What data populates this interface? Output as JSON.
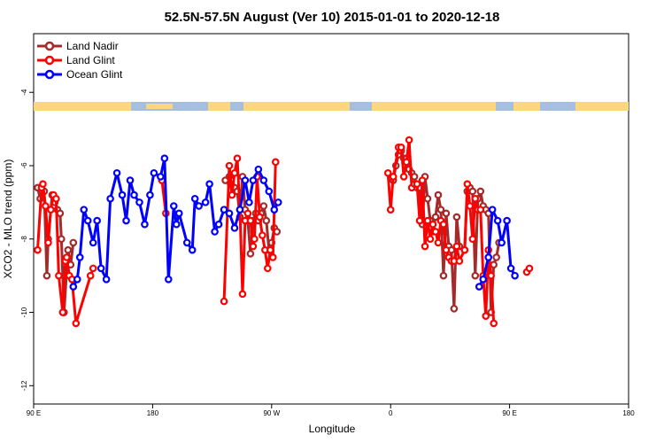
{
  "chart_data": {
    "type": "line",
    "title": "52.5N-57.5N August (Ver 10)   2015-01-01 to 2020-12-18",
    "xlabel": "Longitude",
    "ylabel": "XCO2 - MLO trend (ppm)",
    "x_ticks": [
      {
        "value": 90,
        "label": "90 E"
      },
      {
        "value": 180,
        "label": "180"
      },
      {
        "value": 270,
        "label": "90 W"
      },
      {
        "value": 360,
        "label": "0"
      },
      {
        "value": 450,
        "label": "90 E"
      },
      {
        "value": 540,
        "label": "180"
      }
    ],
    "y_ticks": [
      {
        "value": -4,
        "label": "-4"
      },
      {
        "value": -6,
        "label": "-6"
      },
      {
        "value": -8,
        "label": "-8"
      },
      {
        "value": -10,
        "label": "-10"
      },
      {
        "value": -12,
        "label": "-12"
      }
    ],
    "xlim": [
      90,
      540
    ],
    "ylim": [
      -12.5,
      -2.4
    ],
    "legend_position": "top-left",
    "series": [
      {
        "name": "Land Nadir",
        "color": "#a52a2a",
        "points": [
          [
            93,
            -6.6
          ],
          [
            95,
            -6.9
          ],
          [
            98,
            -6.7
          ],
          [
            100,
            -9
          ],
          [
            101,
            -8
          ],
          [
            104,
            -6.8
          ],
          [
            106,
            -7
          ],
          [
            108,
            -7.2
          ],
          [
            110,
            -7.3
          ],
          [
            111,
            -8
          ],
          [
            113,
            -10
          ],
          [
            116,
            -8.3
          ],
          [
            118,
            -8.7
          ],
          [
            120,
            -8.1
          ],
          [
            235,
            -6.4
          ],
          [
            238,
            -6.3
          ],
          [
            239,
            -6.5
          ],
          [
            242,
            -6.6
          ],
          [
            244,
            -6.7
          ],
          [
            246,
            -7.4
          ],
          [
            248,
            -6.3
          ],
          [
            250,
            -7.2
          ],
          [
            252,
            -7.5
          ],
          [
            254,
            -8.4
          ],
          [
            256,
            -7.5
          ],
          [
            258,
            -7.3
          ],
          [
            260,
            -7.5
          ],
          [
            262,
            -7.3
          ],
          [
            264,
            -7.1
          ],
          [
            266,
            -7.5
          ],
          [
            268,
            -8.3
          ],
          [
            270,
            -8.1
          ],
          [
            272,
            -7.7
          ],
          [
            274,
            -7.8
          ],
          [
            362,
            -6.4
          ],
          [
            364,
            -6
          ],
          [
            366,
            -5.7
          ],
          [
            368,
            -5.6
          ],
          [
            370,
            -5.8
          ],
          [
            372,
            -5.8
          ],
          [
            374,
            -6.1
          ],
          [
            376,
            -6.2
          ],
          [
            378,
            -6.3
          ],
          [
            380,
            -6.6
          ],
          [
            382,
            -6.6
          ],
          [
            384,
            -7.6
          ],
          [
            386,
            -6.3
          ],
          [
            388,
            -6.9
          ],
          [
            390,
            -7.5
          ],
          [
            392,
            -7.8
          ],
          [
            394,
            -7.4
          ],
          [
            396,
            -6.8
          ],
          [
            398,
            -7.2
          ],
          [
            400,
            -9
          ],
          [
            402,
            -7.3
          ],
          [
            404,
            -8.2
          ],
          [
            406,
            -8.3
          ],
          [
            408,
            -9.9
          ],
          [
            410,
            -7.4
          ],
          [
            412,
            -8.2
          ],
          [
            416,
            -8.3
          ],
          [
            418,
            -6.7
          ],
          [
            420,
            -6.6
          ],
          [
            422,
            -6.7
          ],
          [
            424,
            -9
          ],
          [
            426,
            -6.9
          ],
          [
            428,
            -6.7
          ],
          [
            430,
            -7.1
          ],
          [
            432,
            -7.2
          ],
          [
            434,
            -7.3
          ],
          [
            436,
            -10
          ],
          [
            438,
            -8.7
          ],
          [
            440,
            -8.5
          ],
          [
            442,
            -8.1
          ]
        ]
      },
      {
        "name": "Land Glint",
        "color": "#ff0000",
        "points": [
          [
            93,
            -8.3
          ],
          [
            96,
            -6.6
          ],
          [
            97,
            -6.5
          ],
          [
            99,
            -7.1
          ],
          [
            101,
            -8.1
          ],
          [
            103,
            -7.2
          ],
          [
            105,
            -6.8
          ],
          [
            107,
            -6.9
          ],
          [
            109,
            -9
          ],
          [
            112,
            -10
          ],
          [
            114,
            -8.6
          ],
          [
            115,
            -8.5
          ],
          [
            117,
            -9
          ],
          [
            119,
            -9.1
          ],
          [
            122,
            -10.3
          ],
          [
            133,
            -9
          ],
          [
            135,
            -8.8
          ],
          [
            187,
            -6.4
          ],
          [
            190,
            -7.3
          ],
          [
            234,
            -9.7
          ],
          [
            238,
            -6
          ],
          [
            240,
            -6.8
          ],
          [
            242,
            -6.2
          ],
          [
            244,
            -5.8
          ],
          [
            246,
            -7.2
          ],
          [
            248,
            -9.5
          ],
          [
            250,
            -7.5
          ],
          [
            252,
            -7.3
          ],
          [
            254,
            -7.5
          ],
          [
            256,
            -8.2
          ],
          [
            257,
            -8
          ],
          [
            259,
            -6.3
          ],
          [
            261,
            -7.4
          ],
          [
            263,
            -7.9
          ],
          [
            265,
            -8.3
          ],
          [
            267,
            -8.8
          ],
          [
            269,
            -8.3
          ],
          [
            271,
            -8.5
          ],
          [
            273,
            -5.9
          ],
          [
            358,
            -6.2
          ],
          [
            360,
            -7.2
          ],
          [
            362,
            -6.3
          ],
          [
            366,
            -5.5
          ],
          [
            368,
            -5.5
          ],
          [
            370,
            -6.3
          ],
          [
            372,
            -5.9
          ],
          [
            374,
            -5.3
          ],
          [
            376,
            -6.6
          ],
          [
            378,
            -6.5
          ],
          [
            380,
            -6.5
          ],
          [
            382,
            -7.5
          ],
          [
            384,
            -6.4
          ],
          [
            386,
            -8.2
          ],
          [
            388,
            -7.5
          ],
          [
            390,
            -8
          ],
          [
            392,
            -7.6
          ],
          [
            394,
            -7.8
          ],
          [
            396,
            -8.1
          ],
          [
            398,
            -7.5
          ],
          [
            400,
            -7.6
          ],
          [
            402,
            -8.3
          ],
          [
            404,
            -8.5
          ],
          [
            406,
            -8.6
          ],
          [
            408,
            -8.6
          ],
          [
            410,
            -8.2
          ],
          [
            412,
            -8.6
          ],
          [
            416,
            -8.3
          ],
          [
            418,
            -6.5
          ],
          [
            420,
            -7.1
          ],
          [
            422,
            -8
          ],
          [
            424,
            -6.9
          ],
          [
            426,
            -7.2
          ],
          [
            428,
            -7.2
          ],
          [
            430,
            -9
          ],
          [
            432,
            -10.1
          ],
          [
            434,
            -8.3
          ],
          [
            436,
            -9
          ],
          [
            438,
            -10.3
          ],
          [
            463,
            -8.9
          ],
          [
            465,
            -8.8
          ]
        ]
      },
      {
        "name": "Ocean Glint",
        "color": "#0000ff",
        "points": [
          [
            120,
            -9.3
          ],
          [
            123,
            -9.1
          ],
          [
            125,
            -8.5
          ],
          [
            128,
            -7.2
          ],
          [
            131,
            -7.5
          ],
          [
            135,
            -8.1
          ],
          [
            138,
            -7.5
          ],
          [
            141,
            -8.8
          ],
          [
            145,
            -9.1
          ],
          [
            148,
            -6.9
          ],
          [
            153,
            -6.2
          ],
          [
            157,
            -6.8
          ],
          [
            160,
            -7.5
          ],
          [
            163,
            -6.4
          ],
          [
            166,
            -6.8
          ],
          [
            170,
            -7
          ],
          [
            174,
            -7.6
          ],
          [
            178,
            -6.8
          ],
          [
            181,
            -6.2
          ],
          [
            186,
            -6.3
          ],
          [
            189,
            -5.8
          ],
          [
            192,
            -9.1
          ],
          [
            196,
            -7.1
          ],
          [
            198,
            -7.6
          ],
          [
            200,
            -7.3
          ],
          [
            206,
            -8.1
          ],
          [
            210,
            -8.3
          ],
          [
            212,
            -6.9
          ],
          [
            215,
            -7.1
          ],
          [
            220,
            -7
          ],
          [
            223,
            -6.5
          ],
          [
            227,
            -7.8
          ],
          [
            230,
            -7.6
          ],
          [
            234,
            -7.2
          ],
          [
            238,
            -7.3
          ],
          [
            242,
            -7.7
          ],
          [
            246,
            -7.2
          ],
          [
            250,
            -6.4
          ],
          [
            253,
            -7
          ],
          [
            256,
            -6.4
          ],
          [
            260,
            -6.1
          ],
          [
            264,
            -6.4
          ],
          [
            268,
            -6.7
          ],
          [
            272,
            -7.2
          ],
          [
            275,
            -7
          ],
          [
            427,
            -9.3
          ],
          [
            430,
            -9.1
          ],
          [
            434,
            -8.5
          ],
          [
            437,
            -7.2
          ],
          [
            441,
            -7.5
          ],
          [
            444,
            -8.1
          ],
          [
            448,
            -7.5
          ],
          [
            451,
            -8.8
          ],
          [
            454,
            -9
          ]
        ]
      }
    ]
  }
}
